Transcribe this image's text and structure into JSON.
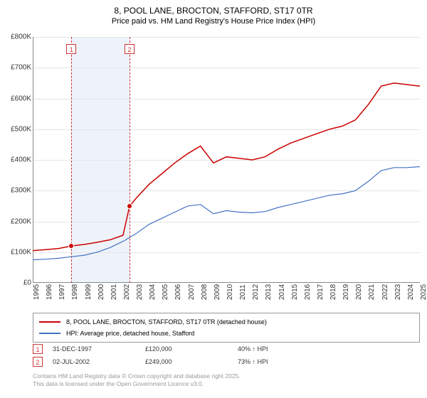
{
  "title": "8, POOL LANE, BROCTON, STAFFORD, ST17 0TR",
  "subtitle": "Price paid vs. HM Land Registry's House Price Index (HPI)",
  "chart": {
    "type": "line",
    "background_color": "#ffffff",
    "grid_color": "#e5e5e5",
    "axis_color": "#888888",
    "y_axis": {
      "min": 0,
      "max": 800000,
      "tick_step": 100000,
      "ticks": [
        "£0",
        "£100K",
        "£200K",
        "£300K",
        "£400K",
        "£500K",
        "£600K",
        "£700K",
        "£800K"
      ],
      "label_fontsize": 10
    },
    "x_axis": {
      "min": 1995,
      "max": 2025,
      "ticks": [
        "1995",
        "1996",
        "1997",
        "1998",
        "1999",
        "2000",
        "2001",
        "2002",
        "2003",
        "2004",
        "2005",
        "2006",
        "2007",
        "2008",
        "2009",
        "2010",
        "2011",
        "2012",
        "2013",
        "2014",
        "2015",
        "2016",
        "2017",
        "2018",
        "2019",
        "2020",
        "2021",
        "2022",
        "2023",
        "2024",
        "2025"
      ],
      "label_fontsize": 10
    },
    "shaded_region": {
      "x_start": 1998,
      "x_end": 2002.5,
      "color": "#eef3fa"
    },
    "markers": [
      {
        "id": "1",
        "x": 1998,
        "y": 120000,
        "box_y_offset": 70
      },
      {
        "id": "2",
        "x": 2002.5,
        "y": 249000,
        "box_y_offset": 70
      }
    ],
    "marker_line_color": "#cc3333",
    "marker_box_border": "#cc3333",
    "series": [
      {
        "name": "8, POOL LANE, BROCTON, STAFFORD, ST17 0TR (detached house)",
        "color": "#cc0000",
        "line_width": 1.5,
        "points": [
          [
            1995,
            105000
          ],
          [
            1996,
            108000
          ],
          [
            1997,
            112000
          ],
          [
            1998,
            120000
          ],
          [
            1999,
            125000
          ],
          [
            2000,
            132000
          ],
          [
            2001,
            140000
          ],
          [
            2002,
            155000
          ],
          [
            2002.5,
            249000
          ],
          [
            2003,
            275000
          ],
          [
            2004,
            320000
          ],
          [
            2005,
            355000
          ],
          [
            2006,
            390000
          ],
          [
            2007,
            420000
          ],
          [
            2008,
            445000
          ],
          [
            2009,
            390000
          ],
          [
            2010,
            410000
          ],
          [
            2011,
            405000
          ],
          [
            2012,
            400000
          ],
          [
            2013,
            410000
          ],
          [
            2014,
            435000
          ],
          [
            2015,
            455000
          ],
          [
            2016,
            470000
          ],
          [
            2017,
            485000
          ],
          [
            2018,
            500000
          ],
          [
            2019,
            510000
          ],
          [
            2020,
            530000
          ],
          [
            2021,
            580000
          ],
          [
            2022,
            640000
          ],
          [
            2023,
            650000
          ],
          [
            2024,
            645000
          ],
          [
            2025,
            640000
          ]
        ]
      },
      {
        "name": "HPI: Average price, detached house, Stafford",
        "color": "#4472c4",
        "line_width": 1.2,
        "points": [
          [
            1995,
            75000
          ],
          [
            1996,
            77000
          ],
          [
            1997,
            80000
          ],
          [
            1998,
            85000
          ],
          [
            1999,
            90000
          ],
          [
            2000,
            100000
          ],
          [
            2001,
            115000
          ],
          [
            2002,
            135000
          ],
          [
            2003,
            160000
          ],
          [
            2004,
            190000
          ],
          [
            2005,
            210000
          ],
          [
            2006,
            230000
          ],
          [
            2007,
            250000
          ],
          [
            2008,
            255000
          ],
          [
            2009,
            225000
          ],
          [
            2010,
            235000
          ],
          [
            2011,
            230000
          ],
          [
            2012,
            228000
          ],
          [
            2013,
            232000
          ],
          [
            2014,
            245000
          ],
          [
            2015,
            255000
          ],
          [
            2016,
            265000
          ],
          [
            2017,
            275000
          ],
          [
            2018,
            285000
          ],
          [
            2019,
            290000
          ],
          [
            2020,
            300000
          ],
          [
            2021,
            330000
          ],
          [
            2022,
            365000
          ],
          [
            2023,
            375000
          ],
          [
            2024,
            375000
          ],
          [
            2025,
            378000
          ]
        ]
      }
    ]
  },
  "legend": {
    "items": [
      {
        "color": "#cc0000",
        "label": "8, POOL LANE, BROCTON, STAFFORD, ST17 0TR (detached house)"
      },
      {
        "color": "#4472c4",
        "label": "HPI: Average price, detached house, Stafford"
      }
    ]
  },
  "data_table": {
    "rows": [
      {
        "marker": "1",
        "date": "31-DEC-1997",
        "price": "£120,000",
        "pct": "40% ↑ HPI"
      },
      {
        "marker": "2",
        "date": "02-JUL-2002",
        "price": "£249,000",
        "pct": "73% ↑ HPI"
      }
    ]
  },
  "footer": {
    "line1": "Contains HM Land Registry data © Crown copyright and database right 2025.",
    "line2": "This data is licensed under the Open Government Licence v3.0."
  }
}
